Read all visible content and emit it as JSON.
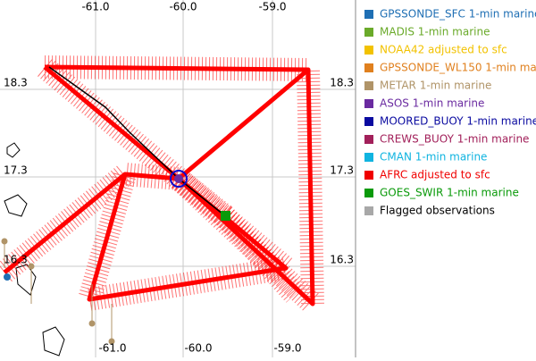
{
  "map": {
    "lon_labels_top": [
      "-61.0",
      "-60.0",
      "-59.0"
    ],
    "lon_labels_bottom": [
      "-61.0",
      "-60.0",
      "-59.0"
    ],
    "lat_labels_left": [
      "18.3",
      "17.3",
      "16.3"
    ],
    "lat_labels_right": [
      "18.3",
      "17.3",
      "16.3"
    ]
  },
  "legend": {
    "items": [
      {
        "label": "GPSSONDE_SFC 1-min marine",
        "color": "#1f6fb4",
        "text_color": "#1f6fb4"
      },
      {
        "label": "MADIS 1-min marine",
        "color": "#6aaa2a",
        "text_color": "#6aaa2a"
      },
      {
        "label": "NOAA42 adjusted to sfc",
        "color": "#f2c200",
        "text_color": "#f2c200"
      },
      {
        "label": "GPSSONDE_WL150 1-min mar",
        "color": "#e0801e",
        "text_color": "#e0801e"
      },
      {
        "label": "METAR 1-min marine",
        "color": "#b09468",
        "text_color": "#b09468"
      },
      {
        "label": "ASOS 1-min marine",
        "color": "#6a2aa0",
        "text_color": "#6a2aa0"
      },
      {
        "label": "MOORED_BUOY 1-min marine",
        "color": "#0a0aa0",
        "text_color": "#0a0aa0"
      },
      {
        "label": "CREWS_BUOY 1-min marine",
        "color": "#a2205a",
        "text_color": "#a2205a"
      },
      {
        "label": "CMAN 1-min marine",
        "color": "#10b4e0",
        "text_color": "#10b4e0"
      },
      {
        "label": "AFRC adjusted to sfc",
        "color": "#f00000",
        "text_color": "#f00000"
      },
      {
        "label": "GOES_SWIR 1-min marine",
        "color": "#0a9a0a",
        "text_color": "#0a9a0a"
      },
      {
        "label": "Flagged observations",
        "color": "#a8a8a8",
        "text_color": "#000000"
      }
    ]
  }
}
